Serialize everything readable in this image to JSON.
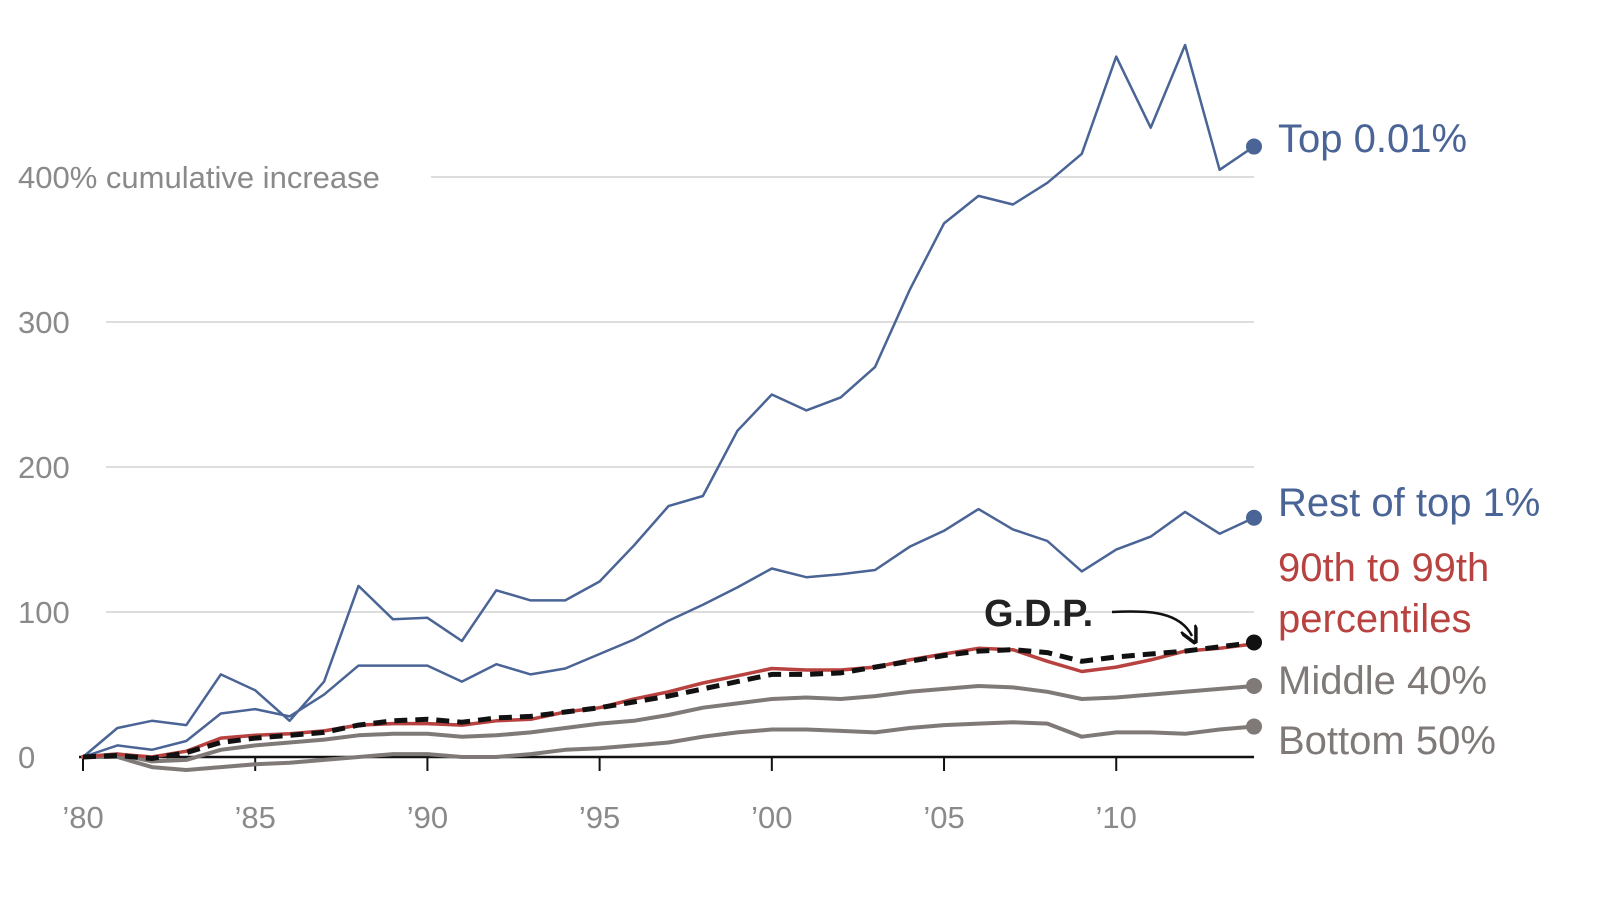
{
  "chart_data": {
    "type": "line",
    "title": "",
    "xlabel": "",
    "ylabel": "",
    "x": [
      1980,
      1981,
      1982,
      1983,
      1984,
      1985,
      1986,
      1987,
      1988,
      1989,
      1990,
      1991,
      1992,
      1993,
      1994,
      1995,
      1996,
      1997,
      1998,
      1999,
      2000,
      2001,
      2002,
      2003,
      2004,
      2005,
      2006,
      2007,
      2008,
      2009,
      2010,
      2011,
      2012,
      2013,
      2014
    ],
    "xlim": [
      1980,
      2014
    ],
    "ylim": [
      0,
      470
    ],
    "y_ticks": [
      {
        "value": 0,
        "label": "0"
      },
      {
        "value": 100,
        "label": "100"
      },
      {
        "value": 200,
        "label": "200"
      },
      {
        "value": 300,
        "label": "300"
      },
      {
        "value": 400,
        "label": "400% cumulative increase"
      }
    ],
    "x_ticks": [
      {
        "value": 1980,
        "label": "’80"
      },
      {
        "value": 1985,
        "label": "’85"
      },
      {
        "value": 1990,
        "label": "’90"
      },
      {
        "value": 1995,
        "label": "’95"
      },
      {
        "value": 2000,
        "label": "’00"
      },
      {
        "value": 2005,
        "label": "’05"
      },
      {
        "value": 2010,
        "label": "’10"
      }
    ],
    "grid": true,
    "series": [
      {
        "name": "Top 0.01%",
        "color": "#4a6496",
        "style": "solid",
        "values": [
          0,
          20,
          25,
          22,
          57,
          46,
          25,
          52,
          118,
          95,
          96,
          80,
          115,
          108,
          108,
          121,
          146,
          173,
          180,
          225,
          250,
          239,
          248,
          269,
          322,
          368,
          387,
          381,
          396,
          416,
          483,
          434,
          491,
          405,
          421
        ]
      },
      {
        "name": "Rest of top 1%",
        "color": "#4a6496",
        "style": "solid",
        "values": [
          0,
          8,
          5,
          11,
          30,
          33,
          28,
          43,
          63,
          63,
          63,
          52,
          64,
          57,
          61,
          71,
          81,
          94,
          105,
          117,
          130,
          124,
          126,
          129,
          145,
          156,
          171,
          157,
          149,
          128,
          143,
          152,
          169,
          154,
          165
        ]
      },
      {
        "name": "90th to 99th percentiles",
        "color": "#b8423f",
        "style": "solid",
        "values": [
          0,
          2,
          0,
          4,
          13,
          15,
          16,
          18,
          22,
          23,
          23,
          22,
          25,
          26,
          31,
          34,
          40,
          45,
          51,
          56,
          61,
          60,
          60,
          62,
          67,
          71,
          75,
          74,
          66,
          59,
          62,
          67,
          73,
          75,
          78
        ]
      },
      {
        "name": "G.D.P.",
        "color": "#111111",
        "style": "dashed",
        "values": [
          0,
          1,
          -1,
          3,
          10,
          13,
          15,
          17,
          22,
          25,
          26,
          24,
          27,
          28,
          31,
          34,
          38,
          42,
          47,
          52,
          57,
          57,
          58,
          62,
          66,
          70,
          73,
          74,
          72,
          66,
          69,
          71,
          73,
          76,
          79
        ]
      },
      {
        "name": "Middle 40%",
        "color": "#7f7a77",
        "style": "solid",
        "values": [
          0,
          2,
          -3,
          -2,
          5,
          8,
          10,
          12,
          15,
          16,
          16,
          14,
          15,
          17,
          20,
          23,
          25,
          29,
          34,
          37,
          40,
          41,
          40,
          42,
          45,
          47,
          49,
          48,
          45,
          40,
          41,
          43,
          45,
          47,
          49
        ]
      },
      {
        "name": "Bottom 50%",
        "color": "#7f7a77",
        "style": "solid",
        "values": [
          0,
          0,
          -7,
          -9,
          -7,
          -5,
          -4,
          -2,
          0,
          2,
          2,
          0,
          0,
          2,
          5,
          6,
          8,
          10,
          14,
          17,
          19,
          19,
          18,
          17,
          20,
          22,
          23,
          24,
          23,
          14,
          17,
          17,
          16,
          19,
          21
        ]
      }
    ],
    "series_labels": [
      {
        "text_lines": [
          "Top 0.01%"
        ],
        "color": "#4a6496"
      },
      {
        "text_lines": [
          "Rest of top 1%"
        ],
        "color": "#4a6496"
      },
      {
        "text_lines": [
          "90th to 99th",
          "percentiles"
        ],
        "color": "#b8423f"
      },
      {
        "text_lines": [
          "Middle 40%"
        ],
        "color": "#7f7a77"
      },
      {
        "text_lines": [
          "Bottom 50%"
        ],
        "color": "#7f7a77"
      }
    ],
    "annotation": {
      "text": "G.D.P.",
      "arrow_to_year": 2012
    }
  }
}
